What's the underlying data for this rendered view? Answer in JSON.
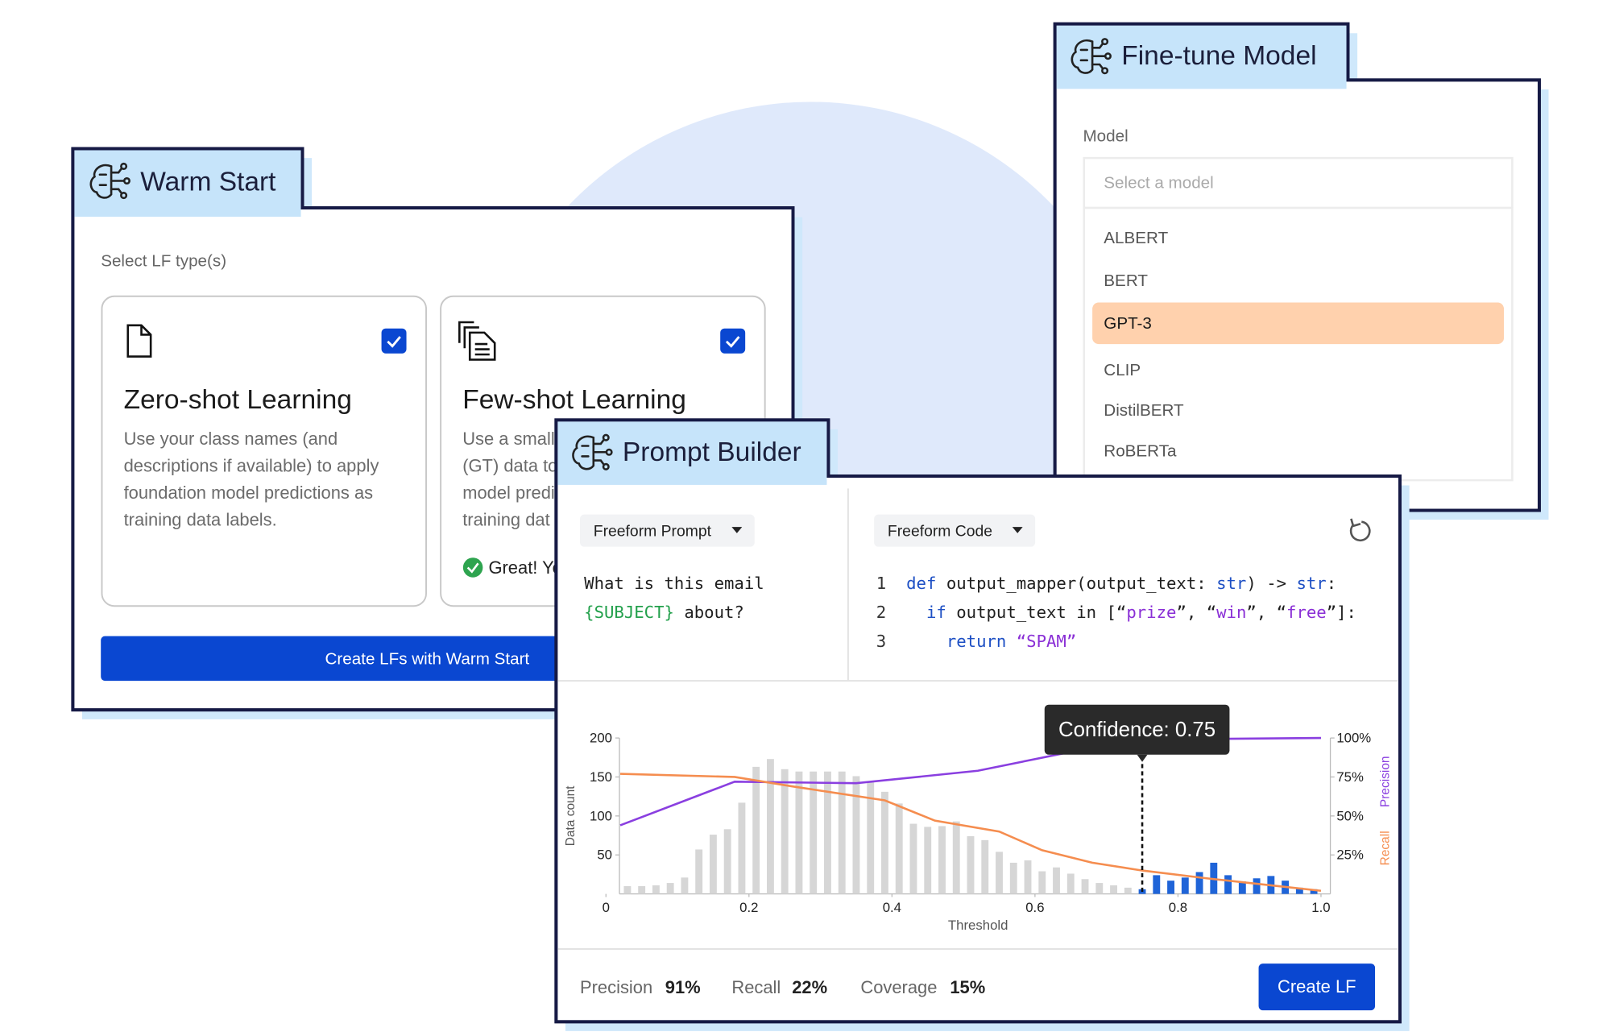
{
  "warm_start": {
    "title": "Warm Start",
    "label": "Select LF type(s)",
    "options": [
      {
        "title": "Zero-shot Learning",
        "checked": true,
        "description": [
          "Use your class names (and",
          "descriptions if available) to apply",
          "foundation model predictions as",
          "training data labels."
        ]
      },
      {
        "title": "Few-shot Learning",
        "checked": true,
        "description": [
          "Use a small",
          "(GT) data to",
          "model predi",
          "training dat"
        ],
        "status": "Great! Yo"
      }
    ],
    "button": "Create LFs with Warm Start"
  },
  "fine_tune": {
    "title": "Fine-tune Model",
    "label": "Model",
    "placeholder": "Select a model",
    "options": [
      "ALBERT",
      "BERT",
      "GPT-3",
      "CLIP",
      "DistilBERT",
      "RoBERTa"
    ],
    "selected": 2
  },
  "prompt_builder": {
    "title": "Prompt Builder",
    "prompt_mode": "Freeform Prompt",
    "code_mode": "Freeform Code",
    "prompt": [
      [
        {
          "text": "What is this email"
        }
      ],
      [
        {
          "text": "{SUBJECT}",
          "color": "#22a04b"
        },
        {
          "text": " about?"
        }
      ]
    ],
    "line_numbers": [
      1,
      2,
      3
    ],
    "code": [
      [
        {
          "text": "def ",
          "color": "#1d4fc4"
        },
        {
          "text": "output_mapper(output_text: "
        },
        {
          "text": "str",
          "color": "#1d4fc4"
        },
        {
          "text": ") -> "
        },
        {
          "text": "str",
          "color": "#1d4fc4"
        },
        {
          "text": ":"
        }
      ],
      [
        {
          "text": "  if ",
          "color": "#1d4fc4"
        },
        {
          "text": "output_text in [“"
        },
        {
          "text": "prize",
          "color": "#8a2fd6"
        },
        {
          "text": "”, “"
        },
        {
          "text": "win",
          "color": "#8a2fd6"
        },
        {
          "text": "”, “"
        },
        {
          "text": "free",
          "color": "#8a2fd6"
        },
        {
          "text": "”]:"
        }
      ],
      [
        {
          "text": "    return ",
          "color": "#1d4fc4"
        },
        {
          "text": "“SPAM”",
          "color": "#8a2fd6"
        }
      ]
    ],
    "metrics": [
      {
        "label": "Precision",
        "value": "91%"
      },
      {
        "label": "Recall",
        "value": "22%"
      },
      {
        "label": "Coverage",
        "value": "15%"
      }
    ],
    "button": "Create LF"
  },
  "chart_data": {
    "type": "histogram",
    "x_label": "Threshold",
    "y_label": "Data count",
    "bins": [
      0.02,
      0.04,
      0.06,
      0.08,
      0.1,
      0.12,
      0.14,
      0.16,
      0.18,
      0.2,
      0.22,
      0.24,
      0.26,
      0.28,
      0.3,
      0.32,
      0.34,
      0.36,
      0.38,
      0.4,
      0.42,
      0.44,
      0.46,
      0.48,
      0.5,
      0.52,
      0.54,
      0.56,
      0.58,
      0.6,
      0.62,
      0.64,
      0.66,
      0.68,
      0.7,
      0.72,
      0.74,
      0.76,
      0.78,
      0.8,
      0.82,
      0.84,
      0.86,
      0.88,
      0.9,
      0.92,
      0.94,
      0.96,
      0.98,
      1.0
    ],
    "values": [
      10,
      10,
      11,
      14,
      21,
      57,
      76,
      83,
      117,
      163,
      173,
      160,
      157,
      157,
      157,
      157,
      151,
      143,
      131,
      116,
      90,
      86,
      87,
      93,
      74,
      69,
      54,
      40,
      43,
      29,
      34,
      26,
      19,
      14,
      11,
      8,
      6,
      24,
      17,
      21,
      28,
      40,
      24,
      16,
      20,
      23,
      17,
      8,
      6
    ],
    "color": "#d6d6d6",
    "highlight_color": "#1f64d8",
    "threshold": 0.75,
    "annotation": "Confidence: 0.75",
    "xlim": [
      0,
      1
    ],
    "xticks": [
      0,
      0.2,
      0.4,
      0.6,
      0.8,
      {
        "value": 1,
        "label": "1.0"
      }
    ],
    "ylim": [
      0,
      200
    ],
    "yticks": [
      50,
      100,
      150,
      200
    ],
    "y2lim": [
      0,
      100
    ],
    "y2ticks": [
      {
        "value": 25,
        "label": "25%"
      },
      {
        "value": 50,
        "label": "50%"
      },
      {
        "value": 75,
        "label": "75%"
      },
      {
        "value": 100,
        "label": "100%"
      }
    ],
    "series": [
      {
        "name": "Precision",
        "color": "#8a3fe0",
        "axis": "y2",
        "x": [
          0.02,
          0.18,
          0.35,
          0.52,
          0.66,
          0.75,
          1.0
        ],
        "values": [
          44,
          72,
          71,
          79,
          92,
          99,
          100
        ]
      },
      {
        "name": "Recall",
        "color": "#f58d4f",
        "axis": "y2",
        "x": [
          0.02,
          0.18,
          0.26,
          0.39,
          0.46,
          0.55,
          0.61,
          0.68,
          0.75,
          0.84,
          0.94,
          1.0
        ],
        "values": [
          77,
          75,
          69,
          60,
          47,
          40,
          28,
          20,
          15,
          10,
          5,
          2
        ]
      }
    ]
  }
}
